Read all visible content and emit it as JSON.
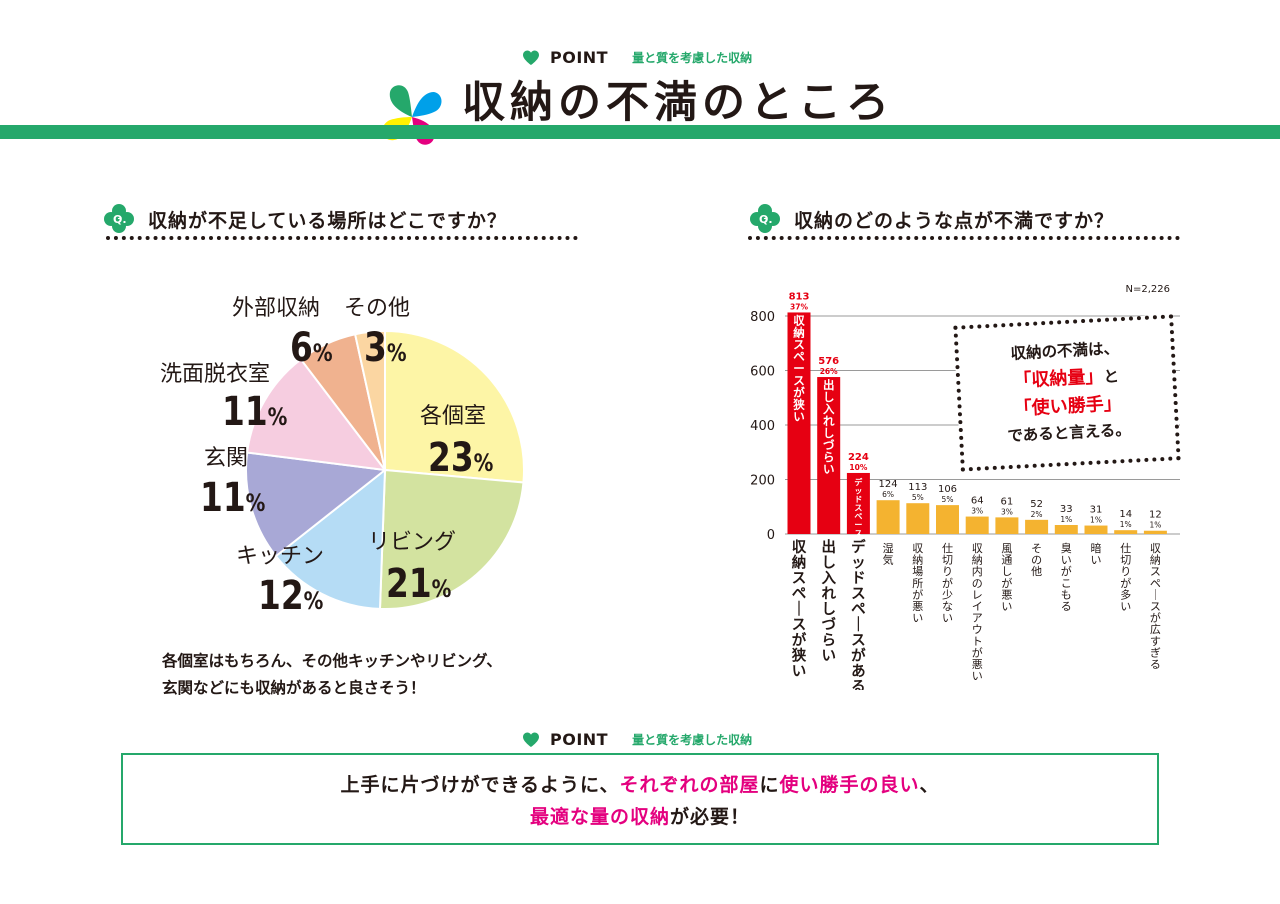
{
  "header": {
    "point_word": "POINT",
    "point_sub": "量と質を考慮した収納",
    "title": "収納の不満のところ"
  },
  "left": {
    "question": "収納が不足している場所はどこですか？",
    "q_badge": "Q.",
    "note_lines": [
      "各個室はもちろん、その他キッチンやリビング、",
      "玄関などにも収納があると良さそう！"
    ]
  },
  "right": {
    "question": "収納のどのような点が不満ですか？",
    "q_badge": "Q.",
    "n_label": "N=2,226",
    "callout": {
      "line1": "収納の不満は、",
      "line2": "「収納量」",
      "line2_tail": "と",
      "line3": "「使い勝手」",
      "line4": "であると言える。"
    }
  },
  "bottom": {
    "point_word": "POINT",
    "point_sub": "量と質を考慮した収納",
    "line1_a": "上手に片づけができるように、",
    "line1_b": "それぞれの部屋",
    "line1_c": "に",
    "line1_d": "使い勝手の良い",
    "line1_e": "、",
    "line2_a": "最適な量の収納",
    "line2_b": "が必要！"
  },
  "colors": {
    "green": "#25a86b",
    "red": "#e60012",
    "orange": "#f4b330",
    "pink": "#e4007f"
  },
  "chart_data": [
    {
      "type": "pie",
      "slices": [
        {
          "label": "各個室",
          "value": 23,
          "display": "23",
          "color": "#fdf5a6"
        },
        {
          "label": "リビング",
          "value": 21,
          "display": "21",
          "color": "#d3e3a0"
        },
        {
          "label": "キッチン",
          "value": 12,
          "display": "12",
          "color": "#b5dcf5"
        },
        {
          "label": "玄関",
          "value": 11,
          "display": "11",
          "color": "#a8a8d6"
        },
        {
          "label": "洗面脱衣室",
          "value": 11,
          "display": "11",
          "color": "#f6cde0"
        },
        {
          "label": "外部収納",
          "value": 6,
          "display": "6",
          "color": "#f0b28f"
        },
        {
          "label": "その他",
          "value": 3,
          "display": "3",
          "color": "#fbd6a2"
        }
      ],
      "pct_suffix": "%"
    },
    {
      "type": "bar",
      "ylim": [
        0,
        800
      ],
      "yticks": [
        "0",
        "200",
        "400",
        "600",
        "800"
      ],
      "categories": [
        "収納スペースが狭い",
        "出し入れしづらい",
        "デッドスペースがある",
        "湿気",
        "収納場所が悪い",
        "仕切りが少ない",
        "収納内のレイアウトが悪い",
        "風通しが悪い",
        "その他",
        "臭いがこもる",
        "暗い",
        "仕切りが多い",
        "収納スペースが広すぎる"
      ],
      "values": [
        813,
        576,
        224,
        124,
        113,
        106,
        64,
        61,
        52,
        33,
        31,
        14,
        12
      ],
      "value_labels": [
        "813",
        "576",
        "224",
        "124",
        "113",
        "106",
        "64",
        "61",
        "52",
        "33",
        "31",
        "14",
        "12"
      ],
      "pct_labels": [
        "37%",
        "26%",
        "10%",
        "6%",
        "5%",
        "5%",
        "3%",
        "3%",
        "2%",
        "1%",
        "1%",
        "1%",
        "1%"
      ],
      "in_bar_labels": [
        "収納スペースが狭い",
        "出し入れしづらい",
        "デッドスペースがある"
      ],
      "highlight": [
        true,
        true,
        true,
        false,
        false,
        false,
        false,
        false,
        false,
        false,
        false,
        false,
        false
      ],
      "grid": true
    }
  ]
}
